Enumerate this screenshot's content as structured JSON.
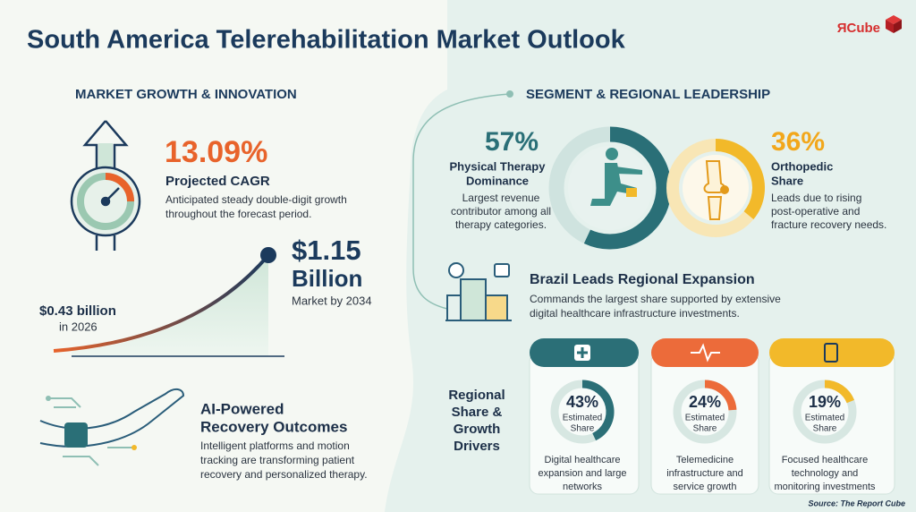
{
  "header": {
    "title": "South America Telerehabilitation Market Outlook",
    "logo": "ЯCube"
  },
  "growth": {
    "heading": "MARKET GROWTH & INNOVATION",
    "cagr": "13.09%",
    "cagr_title": "Projected CAGR",
    "cagr_text": [
      "Anticipated steady double-digit growth",
      "throughout the forecast period."
    ],
    "start": {
      "value": "$0.43 billion",
      "year": "in 2026"
    },
    "end": {
      "value": "$1.15",
      "unit": "Billion",
      "year": "Market by 2034"
    }
  },
  "ai": {
    "title": [
      "AI-Powered",
      "Recovery Outcomes"
    ],
    "text": [
      "Intelligent platforms and motion",
      "tracking are transforming patient",
      "recovery and personalized therapy."
    ]
  },
  "segments": {
    "heading": "SEGMENT & REGIONAL LEADERSHIP",
    "items": [
      {
        "share": 57,
        "label": "57%",
        "title": [
          "Physical Therapy",
          "Dominance"
        ],
        "text": [
          "Largest revenue",
          "contributor among all",
          "therapy categories."
        ]
      },
      {
        "share": 36,
        "label": "36%",
        "title": [
          "Orthopedic",
          "Share"
        ],
        "text": [
          "Leads due to rising",
          "post-operative and",
          "fracture recovery needs."
        ]
      }
    ]
  },
  "brazil": {
    "title": "Brazil Leads Regional Expansion",
    "text": [
      "Commands the largest share supported by extensive",
      "digital healthcare infrastructure investments."
    ]
  },
  "regional": {
    "title": [
      "Regional",
      "Share &",
      "Growth",
      "Drivers"
    ],
    "cards": [
      {
        "share": 43,
        "label": "43%",
        "caption": [
          "Estimated",
          "Share"
        ],
        "text": [
          "Digital healthcare",
          "expansion and large",
          "networks"
        ]
      },
      {
        "share": 24,
        "label": "24%",
        "caption": [
          "Estimated",
          "Share"
        ],
        "text": [
          "Telemedicine",
          "infrastructure and",
          "service growth"
        ]
      },
      {
        "share": 19,
        "label": "19%",
        "caption": [
          "Estimated",
          "Share"
        ],
        "text": [
          "Focused healthcare",
          "technology and",
          "monitoring investments"
        ]
      }
    ]
  },
  "source": "Source: The Report Cube"
}
